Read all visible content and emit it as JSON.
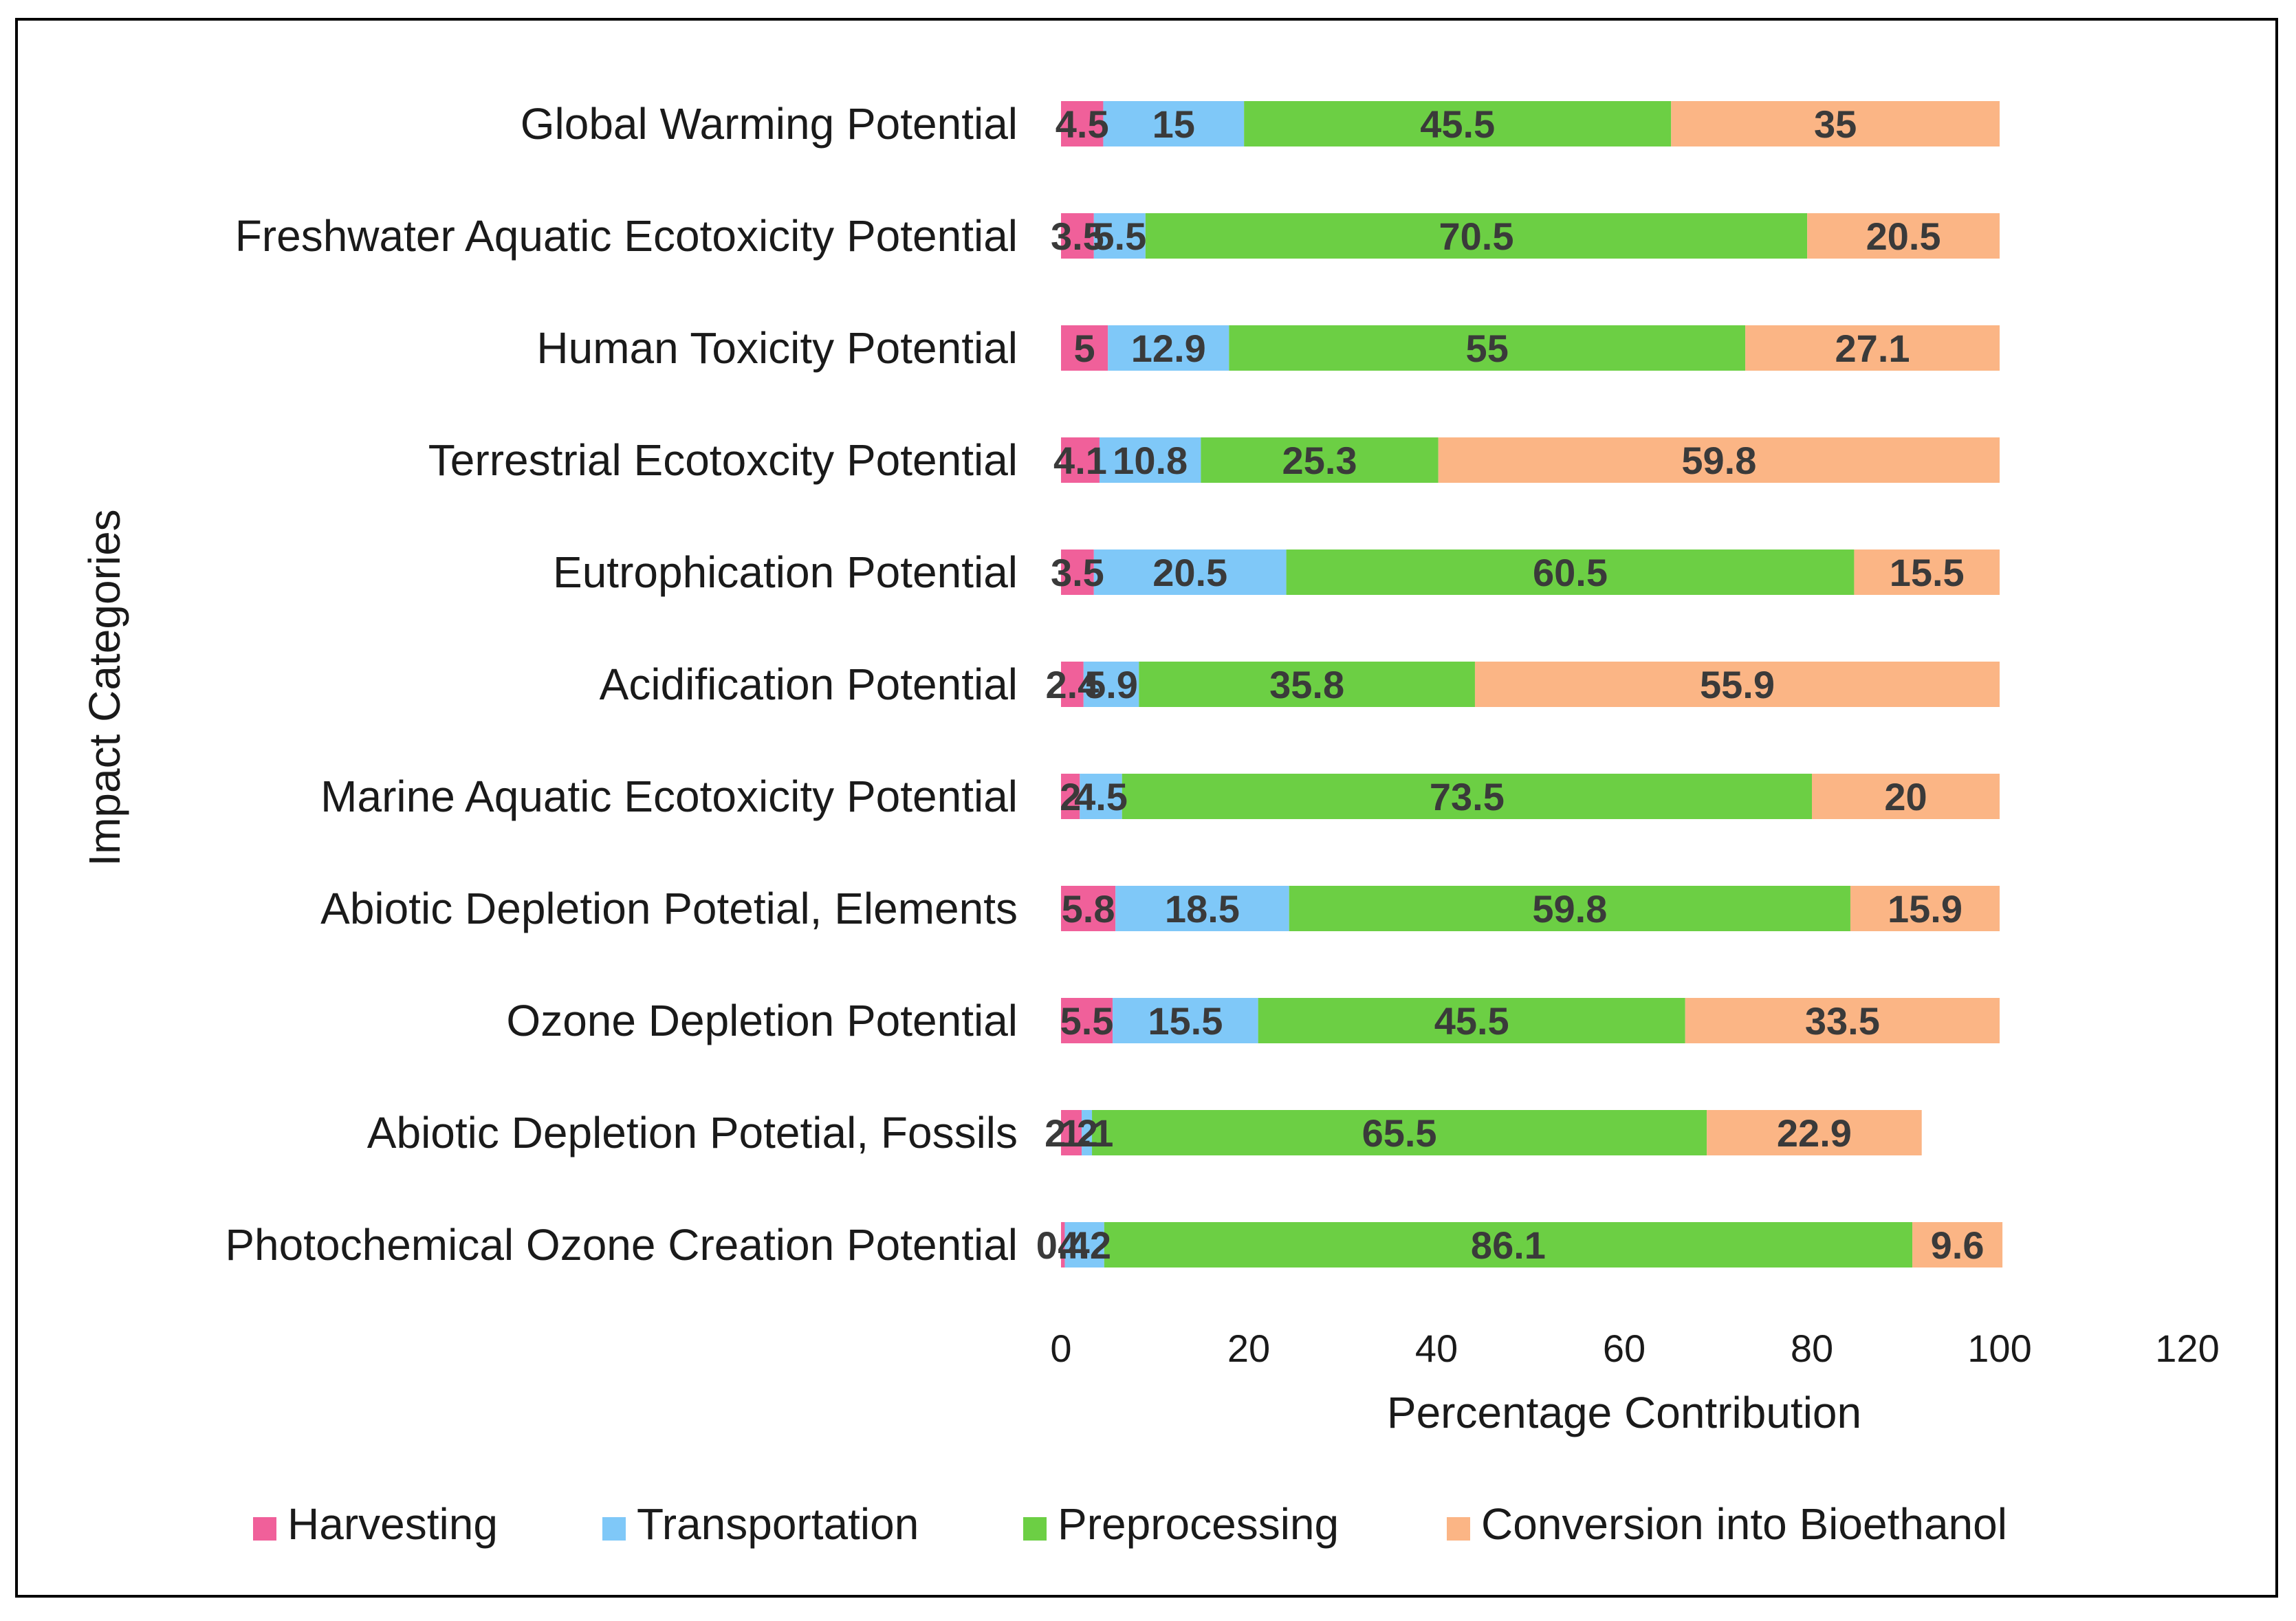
{
  "chart_data": {
    "type": "bar",
    "orientation": "horizontal",
    "stacked": true,
    "title": "",
    "xlabel": "Percentage Contribution",
    "ylabel": "Impact Categories",
    "xlim": [
      0,
      120
    ],
    "x_ticks": [
      "0",
      "20",
      "40",
      "60",
      "80",
      "100",
      "120"
    ],
    "grid": false,
    "legend_position": "bottom",
    "categories": [
      "Global Warming Potential",
      "Freshwater Aquatic Ecotoxicity Potential",
      "Human Toxicity Potential",
      "Terrestrial Ecotoxcity Potential",
      "Eutrophication Potential",
      "Acidification Potential",
      "Marine Aquatic Ecotoxicity Potential",
      "Abiotic Depletion Potetial, Elements",
      "Ozone Depletion Potential",
      "Abiotic Depletion Potetial, Fossils",
      "Photochemical Ozone Creation Potential"
    ],
    "series": [
      {
        "name": "Harvesting",
        "color": "#f0609a",
        "values": [
          4.5,
          3.5,
          5,
          4.1,
          3.5,
          2.4,
          2,
          5.8,
          5.5,
          2.2,
          0.4
        ]
      },
      {
        "name": "Transportation",
        "color": "#7fc8f8",
        "values": [
          15,
          5.5,
          12.9,
          10.8,
          20.5,
          5.9,
          4.5,
          18.5,
          15.5,
          1.1,
          4.2
        ]
      },
      {
        "name": "Preprocessing",
        "color": "#6ccf44",
        "values": [
          45.5,
          70.5,
          55,
          25.3,
          60.5,
          35.8,
          73.5,
          59.8,
          45.5,
          65.5,
          86.1
        ]
      },
      {
        "name": "Conversion into Bioethanol",
        "color": "#fbb585",
        "values": [
          35,
          20.5,
          27.1,
          59.8,
          15.5,
          55.9,
          20,
          15.9,
          33.5,
          22.9,
          9.6
        ]
      }
    ],
    "data_labels": [
      [
        "4.5",
        "15",
        "45.5",
        "35"
      ],
      [
        "3.5",
        "5.5",
        "70.5",
        "20.5"
      ],
      [
        "5",
        "12.9",
        "55",
        "27.1"
      ],
      [
        "4.1",
        "10.8",
        "25.3",
        "59.8"
      ],
      [
        "3.5",
        "20.5",
        "60.5",
        "15.5"
      ],
      [
        "2.4",
        "5.9",
        "35.8",
        "55.9"
      ],
      [
        "2",
        "4.5",
        "73.5",
        "20"
      ],
      [
        "5.8",
        "18.5",
        "59.8",
        "15.9"
      ],
      [
        "5.5",
        "15.5",
        "45.5",
        "33.5"
      ],
      [
        "2.2",
        "1.1",
        "65.5",
        "22.9"
      ],
      [
        "0.4",
        "4.2",
        "86.1",
        "9.6"
      ]
    ]
  }
}
